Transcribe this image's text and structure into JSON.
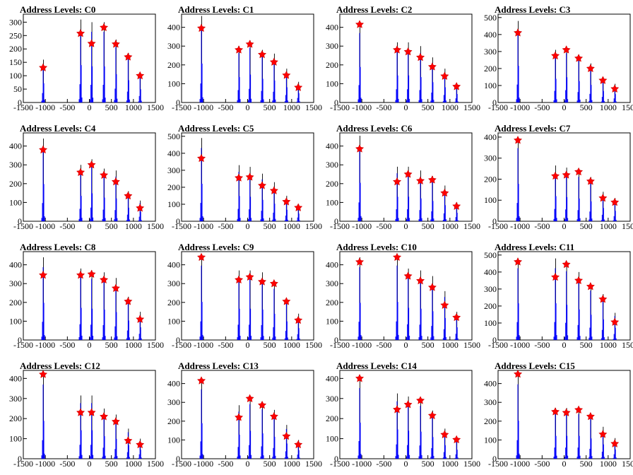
{
  "colors": {
    "histogram": "#0000ff",
    "peak_line": "#000000",
    "marker": "#ff0000",
    "axis": "#000000"
  },
  "chart_data": [
    {
      "type": "bar",
      "title": "Address Levels: C0",
      "xlabel": "",
      "ylabel": "",
      "xlim": [
        -1500,
        1500
      ],
      "ylim": [
        0,
        330
      ],
      "x_ticks": [
        "-1500",
        "-1000",
        "-500",
        "0",
        "500",
        "1000",
        "1500"
      ],
      "y_ticks": [
        "0",
        "50",
        "100",
        "150",
        "200",
        "250",
        "300"
      ],
      "peaks": [
        {
          "x": -1050,
          "hist": 160,
          "marker": 130
        },
        {
          "x": -200,
          "hist": 310,
          "marker": 258
        },
        {
          "x": 50,
          "hist": 300,
          "marker": 220
        },
        {
          "x": 330,
          "hist": 300,
          "marker": 280
        },
        {
          "x": 600,
          "hist": 235,
          "marker": 218
        },
        {
          "x": 880,
          "hist": 185,
          "marker": 170
        },
        {
          "x": 1150,
          "hist": 110,
          "marker": 100
        }
      ]
    },
    {
      "type": "bar",
      "title": "Address Levels: C1",
      "xlabel": "",
      "ylabel": "",
      "xlim": [
        -1500,
        1500
      ],
      "ylim": [
        0,
        470
      ],
      "x_ticks": [
        "-1500",
        "-1000",
        "-500",
        "0",
        "500",
        "1000",
        "1500"
      ],
      "y_ticks": [
        "0",
        "100",
        "200",
        "300",
        "400"
      ],
      "peaks": [
        {
          "x": -1050,
          "hist": 460,
          "marker": 395
        },
        {
          "x": -200,
          "hist": 300,
          "marker": 280
        },
        {
          "x": 50,
          "hist": 330,
          "marker": 310
        },
        {
          "x": 330,
          "hist": 280,
          "marker": 255
        },
        {
          "x": 600,
          "hist": 260,
          "marker": 215
        },
        {
          "x": 880,
          "hist": 180,
          "marker": 145
        },
        {
          "x": 1150,
          "hist": 110,
          "marker": 80
        }
      ]
    },
    {
      "type": "bar",
      "title": "Address Levels: C2",
      "xlabel": "",
      "ylabel": "",
      "xlim": [
        -1500,
        1500
      ],
      "ylim": [
        0,
        470
      ],
      "x_ticks": [
        "-1500",
        "-1000",
        "-500",
        "0",
        "500",
        "1000",
        "1500"
      ],
      "y_ticks": [
        "0",
        "100",
        "200",
        "300",
        "400"
      ],
      "peaks": [
        {
          "x": -1050,
          "hist": 420,
          "marker": 415
        },
        {
          "x": -200,
          "hist": 320,
          "marker": 280
        },
        {
          "x": 50,
          "hist": 320,
          "marker": 270
        },
        {
          "x": 330,
          "hist": 300,
          "marker": 240
        },
        {
          "x": 600,
          "hist": 240,
          "marker": 190
        },
        {
          "x": 880,
          "hist": 180,
          "marker": 140
        },
        {
          "x": 1150,
          "hist": 100,
          "marker": 85
        }
      ]
    },
    {
      "type": "bar",
      "title": "Address Levels: C3",
      "xlabel": "",
      "ylabel": "",
      "xlim": [
        -1500,
        1500
      ],
      "ylim": [
        0,
        520
      ],
      "x_ticks": [
        "-1500",
        "-1000",
        "-500",
        "0",
        "500",
        "1000",
        "1500"
      ],
      "y_ticks": [
        "0",
        "100",
        "200",
        "300",
        "400",
        "500"
      ],
      "peaks": [
        {
          "x": -1050,
          "hist": 480,
          "marker": 410
        },
        {
          "x": -200,
          "hist": 310,
          "marker": 275
        },
        {
          "x": 50,
          "hist": 330,
          "marker": 310
        },
        {
          "x": 330,
          "hist": 280,
          "marker": 260
        },
        {
          "x": 600,
          "hist": 230,
          "marker": 200
        },
        {
          "x": 880,
          "hist": 150,
          "marker": 130
        },
        {
          "x": 1150,
          "hist": 110,
          "marker": 80
        }
      ]
    },
    {
      "type": "bar",
      "title": "Address Levels: C4",
      "xlabel": "",
      "ylabel": "",
      "xlim": [
        -1500,
        1500
      ],
      "ylim": [
        0,
        470
      ],
      "x_ticks": [
        "-1500",
        "-1000",
        "-500",
        "0",
        "500",
        "1000",
        "1500"
      ],
      "y_ticks": [
        "0",
        "100",
        "200",
        "300",
        "400"
      ],
      "peaks": [
        {
          "x": -1050,
          "hist": 440,
          "marker": 380
        },
        {
          "x": -200,
          "hist": 300,
          "marker": 260
        },
        {
          "x": 50,
          "hist": 330,
          "marker": 300
        },
        {
          "x": 330,
          "hist": 280,
          "marker": 245
        },
        {
          "x": 600,
          "hist": 270,
          "marker": 210
        },
        {
          "x": 880,
          "hist": 160,
          "marker": 135
        },
        {
          "x": 1150,
          "hist": 110,
          "marker": 70
        }
      ]
    },
    {
      "type": "bar",
      "title": "Address Levels: C5",
      "xlabel": "",
      "ylabel": "",
      "xlim": [
        -1500,
        1500
      ],
      "ylim": [
        0,
        520
      ],
      "x_ticks": [
        "-1500",
        "-1000",
        "-500",
        "0",
        "500",
        "1000",
        "1500"
      ],
      "y_ticks": [
        "0",
        "100",
        "200",
        "300",
        "400",
        "500"
      ],
      "peaks": [
        {
          "x": -1050,
          "hist": 490,
          "marker": 370
        },
        {
          "x": -200,
          "hist": 330,
          "marker": 255
        },
        {
          "x": 50,
          "hist": 320,
          "marker": 260
        },
        {
          "x": 330,
          "hist": 280,
          "marker": 210
        },
        {
          "x": 600,
          "hist": 230,
          "marker": 180
        },
        {
          "x": 880,
          "hist": 150,
          "marker": 115
        },
        {
          "x": 1150,
          "hist": 100,
          "marker": 80
        }
      ]
    },
    {
      "type": "bar",
      "title": "Address Levels: C6",
      "xlabel": "",
      "ylabel": "",
      "xlim": [
        -1500,
        1500
      ],
      "ylim": [
        0,
        470
      ],
      "x_ticks": [
        "-1500",
        "-1000",
        "-500",
        "0",
        "500",
        "1000",
        "1500"
      ],
      "y_ticks": [
        "0",
        "100",
        "200",
        "300",
        "400"
      ],
      "peaks": [
        {
          "x": -1050,
          "hist": 455,
          "marker": 385
        },
        {
          "x": -200,
          "hist": 290,
          "marker": 210
        },
        {
          "x": 50,
          "hist": 290,
          "marker": 250
        },
        {
          "x": 330,
          "hist": 270,
          "marker": 215
        },
        {
          "x": 600,
          "hist": 240,
          "marker": 220
        },
        {
          "x": 880,
          "hist": 190,
          "marker": 150
        },
        {
          "x": 1150,
          "hist": 100,
          "marker": 80
        }
      ]
    },
    {
      "type": "bar",
      "title": "Address Levels: C7",
      "xlabel": "",
      "ylabel": "",
      "xlim": [
        -1500,
        1500
      ],
      "ylim": [
        0,
        420
      ],
      "x_ticks": [
        "-1500",
        "-1000",
        "-500",
        "0",
        "500",
        "1000",
        "1500"
      ],
      "y_ticks": [
        "0",
        "100",
        "200",
        "300",
        "400"
      ],
      "peaks": [
        {
          "x": -1050,
          "hist": 395,
          "marker": 385
        },
        {
          "x": -200,
          "hist": 265,
          "marker": 215
        },
        {
          "x": 50,
          "hist": 255,
          "marker": 220
        },
        {
          "x": 330,
          "hist": 240,
          "marker": 235
        },
        {
          "x": 600,
          "hist": 210,
          "marker": 190
        },
        {
          "x": 880,
          "hist": 140,
          "marker": 110
        },
        {
          "x": 1150,
          "hist": 110,
          "marker": 90
        }
      ]
    },
    {
      "type": "bar",
      "title": "Address Levels: C8",
      "xlabel": "",
      "ylabel": "",
      "xlim": [
        -1500,
        1500
      ],
      "ylim": [
        0,
        470
      ],
      "x_ticks": [
        "-1500",
        "-1000",
        "-500",
        "0",
        "500",
        "1000",
        "1500"
      ],
      "y_ticks": [
        "0",
        "100",
        "200",
        "300",
        "400"
      ],
      "peaks": [
        {
          "x": -1050,
          "hist": 440,
          "marker": 345
        },
        {
          "x": -200,
          "hist": 380,
          "marker": 345
        },
        {
          "x": 50,
          "hist": 370,
          "marker": 350
        },
        {
          "x": 330,
          "hist": 360,
          "marker": 320
        },
        {
          "x": 600,
          "hist": 330,
          "marker": 275
        },
        {
          "x": 880,
          "hist": 230,
          "marker": 205
        },
        {
          "x": 1150,
          "hist": 150,
          "marker": 110
        }
      ]
    },
    {
      "type": "bar",
      "title": "Address Levels: C9",
      "xlabel": "",
      "ylabel": "",
      "xlim": [
        -1500,
        1500
      ],
      "ylim": [
        0,
        470
      ],
      "x_ticks": [
        "-1500",
        "-1000",
        "-500",
        "0",
        "500",
        "1000",
        "1500"
      ],
      "y_ticks": [
        "0",
        "100",
        "200",
        "300",
        "400"
      ],
      "peaks": [
        {
          "x": -1050,
          "hist": 450,
          "marker": 440
        },
        {
          "x": -200,
          "hist": 370,
          "marker": 320
        },
        {
          "x": 50,
          "hist": 370,
          "marker": 335
        },
        {
          "x": 330,
          "hist": 360,
          "marker": 310
        },
        {
          "x": 600,
          "hist": 310,
          "marker": 300
        },
        {
          "x": 880,
          "hist": 220,
          "marker": 205
        },
        {
          "x": 1150,
          "hist": 140,
          "marker": 105
        }
      ]
    },
    {
      "type": "bar",
      "title": "Address Levels: C10",
      "xlabel": "",
      "ylabel": "",
      "xlim": [
        -1500,
        1500
      ],
      "ylim": [
        0,
        470
      ],
      "x_ticks": [
        "-1500",
        "-1000",
        "-500",
        "0",
        "500",
        "1000",
        "1500"
      ],
      "y_ticks": [
        "0",
        "100",
        "200",
        "300",
        "400"
      ],
      "peaks": [
        {
          "x": -1050,
          "hist": 440,
          "marker": 415
        },
        {
          "x": -200,
          "hist": 450,
          "marker": 440
        },
        {
          "x": 50,
          "hist": 380,
          "marker": 340
        },
        {
          "x": 330,
          "hist": 370,
          "marker": 315
        },
        {
          "x": 600,
          "hist": 340,
          "marker": 280
        },
        {
          "x": 880,
          "hist": 260,
          "marker": 185
        },
        {
          "x": 1150,
          "hist": 150,
          "marker": 120
        }
      ]
    },
    {
      "type": "bar",
      "title": "Address Levels: C11",
      "xlabel": "",
      "ylabel": "",
      "xlim": [
        -1500,
        1500
      ],
      "ylim": [
        0,
        520
      ],
      "x_ticks": [
        "-1500",
        "-1000",
        "-500",
        "0",
        "500",
        "1000",
        "1500"
      ],
      "y_ticks": [
        "0",
        "100",
        "200",
        "300",
        "400",
        "500"
      ],
      "peaks": [
        {
          "x": -1050,
          "hist": 480,
          "marker": 460
        },
        {
          "x": -200,
          "hist": 480,
          "marker": 370
        },
        {
          "x": 50,
          "hist": 460,
          "marker": 445
        },
        {
          "x": 330,
          "hist": 400,
          "marker": 350
        },
        {
          "x": 600,
          "hist": 330,
          "marker": 315
        },
        {
          "x": 880,
          "hist": 270,
          "marker": 240
        },
        {
          "x": 1150,
          "hist": 160,
          "marker": 105
        }
      ]
    },
    {
      "type": "bar",
      "title": "Address Levels: C12",
      "xlabel": "",
      "ylabel": "",
      "xlim": [
        -1500,
        1500
      ],
      "ylim": [
        0,
        440
      ],
      "x_ticks": [
        "-1500",
        "-1000",
        "-500",
        "0",
        "500",
        "1000",
        "1500"
      ],
      "y_ticks": [
        "0",
        "100",
        "200",
        "300",
        "400"
      ],
      "peaks": [
        {
          "x": -1050,
          "hist": 420,
          "marker": 420
        },
        {
          "x": -200,
          "hist": 315,
          "marker": 230
        },
        {
          "x": 50,
          "hist": 315,
          "marker": 230
        },
        {
          "x": 330,
          "hist": 250,
          "marker": 210
        },
        {
          "x": 600,
          "hist": 220,
          "marker": 185
        },
        {
          "x": 880,
          "hist": 150,
          "marker": 90
        },
        {
          "x": 1150,
          "hist": 100,
          "marker": 70
        }
      ]
    },
    {
      "type": "bar",
      "title": "Address Levels: C13",
      "xlabel": "",
      "ylabel": "",
      "xlim": [
        -1500,
        1500
      ],
      "ylim": [
        0,
        470
      ],
      "x_ticks": [
        "-1500",
        "-1000",
        "-500",
        "0",
        "500",
        "1000",
        "1500"
      ],
      "y_ticks": [
        "0",
        "100",
        "200",
        "300",
        "400"
      ],
      "peaks": [
        {
          "x": -1050,
          "hist": 420,
          "marker": 415
        },
        {
          "x": -200,
          "hist": 285,
          "marker": 220
        },
        {
          "x": 50,
          "hist": 330,
          "marker": 320
        },
        {
          "x": 330,
          "hist": 300,
          "marker": 285
        },
        {
          "x": 600,
          "hist": 260,
          "marker": 225
        },
        {
          "x": 880,
          "hist": 180,
          "marker": 120
        },
        {
          "x": 1150,
          "hist": 100,
          "marker": 75
        }
      ]
    },
    {
      "type": "bar",
      "title": "Address Levels: C14",
      "xlabel": "",
      "ylabel": "",
      "xlim": [
        -1500,
        1500
      ],
      "ylim": [
        0,
        440
      ],
      "x_ticks": [
        "-1500",
        "-1000",
        "-500",
        "0",
        "500",
        "1000",
        "1500"
      ],
      "y_ticks": [
        "0",
        "100",
        "200",
        "300",
        "400"
      ],
      "peaks": [
        {
          "x": -1050,
          "hist": 400,
          "marker": 400
        },
        {
          "x": -200,
          "hist": 325,
          "marker": 245
        },
        {
          "x": 50,
          "hist": 310,
          "marker": 270
        },
        {
          "x": 330,
          "hist": 300,
          "marker": 290
        },
        {
          "x": 600,
          "hist": 240,
          "marker": 215
        },
        {
          "x": 880,
          "hist": 150,
          "marker": 120
        },
        {
          "x": 1150,
          "hist": 100,
          "marker": 95
        }
      ]
    },
    {
      "type": "bar",
      "title": "Address Levels: C15",
      "xlabel": "",
      "ylabel": "",
      "xlim": [
        -1500,
        1500
      ],
      "ylim": [
        0,
        470
      ],
      "x_ticks": [
        "-1500",
        "-1000",
        "-500",
        "0",
        "500",
        "1000",
        "1500"
      ],
      "y_ticks": [
        "0",
        "100",
        "200",
        "300",
        "400"
      ],
      "peaks": [
        {
          "x": -1050,
          "hist": 450,
          "marker": 450
        },
        {
          "x": -200,
          "hist": 270,
          "marker": 250
        },
        {
          "x": 50,
          "hist": 270,
          "marker": 245
        },
        {
          "x": 330,
          "hist": 270,
          "marker": 260
        },
        {
          "x": 600,
          "hist": 240,
          "marker": 225
        },
        {
          "x": 880,
          "hist": 170,
          "marker": 130
        },
        {
          "x": 1150,
          "hist": 110,
          "marker": 80
        }
      ]
    }
  ]
}
